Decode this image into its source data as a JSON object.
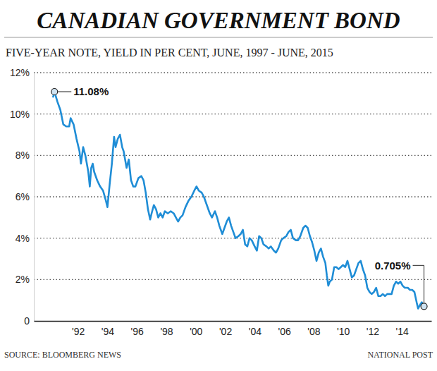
{
  "chart_data": {
    "type": "line",
    "title": "CANADIAN GOVERNMENT BOND",
    "subtitle": "FIVE-YEAR NOTE, YIELD IN PER CENT, JUNE, 1997 - JUNE, 2015",
    "source": "SOURCE: BLOOMBERG NEWS",
    "credit": "NATIONAL POST",
    "color": "#1f8dd6",
    "grid": true,
    "xlim": [
      1989,
      2016
    ],
    "xticks": [
      {
        "value": 1992,
        "label": "'92"
      },
      {
        "value": 1994,
        "label": "'94"
      },
      {
        "value": 1996,
        "label": "'96"
      },
      {
        "value": 1998,
        "label": "'98"
      },
      {
        "value": 2000,
        "label": "'00"
      },
      {
        "value": 2002,
        "label": "'02"
      },
      {
        "value": 2004,
        "label": "'04"
      },
      {
        "value": 2006,
        "label": "'06"
      },
      {
        "value": 2008,
        "label": "'08"
      },
      {
        "value": 2010,
        "label": "'10"
      },
      {
        "value": 2012,
        "label": "'12"
      },
      {
        "value": 2014,
        "label": "'14"
      }
    ],
    "ylim": [
      0,
      12
    ],
    "yticks": [
      0,
      {
        "value": 2,
        "label": "2%"
      },
      {
        "value": 4,
        "label": "4%"
      },
      {
        "value": 6,
        "label": "6%"
      },
      {
        "value": 8,
        "label": "8%"
      },
      {
        "value": 10,
        "label": "10%"
      },
      {
        "value": 12,
        "label": "12%"
      }
    ],
    "x": [
      1990.3,
      1990.4,
      1990.6,
      1990.8,
      1991.0,
      1991.2,
      1991.4,
      1991.5,
      1991.7,
      1991.9,
      1992.1,
      1992.2,
      1992.35,
      1992.5,
      1992.7,
      1992.8,
      1992.9,
      1993.0,
      1993.1,
      1993.3,
      1993.5,
      1993.7,
      1993.9,
      1994.0,
      1994.15,
      1994.3,
      1994.45,
      1994.55,
      1994.7,
      1994.85,
      1995.0,
      1995.1,
      1995.3,
      1995.45,
      1995.6,
      1995.75,
      1995.9,
      1996.1,
      1996.3,
      1996.45,
      1996.6,
      1996.75,
      1996.9,
      1997.0,
      1997.15,
      1997.3,
      1997.45,
      1997.6,
      1997.75,
      1997.9,
      1998.1,
      1998.3,
      1998.5,
      1998.65,
      1998.8,
      1998.95,
      1999.1,
      1999.3,
      1999.5,
      1999.7,
      1999.9,
      2000.05,
      2000.2,
      2000.4,
      2000.55,
      2000.75,
      2000.95,
      2001.1,
      2001.3,
      2001.45,
      2001.6,
      2001.8,
      2001.95,
      2002.1,
      2002.25,
      2002.4,
      2002.55,
      2002.7,
      2002.9,
      2003.05,
      2003.2,
      2003.35,
      2003.5,
      2003.65,
      2003.8,
      2004.0,
      2004.15,
      2004.3,
      2004.45,
      2004.6,
      2004.8,
      2004.95,
      2005.1,
      2005.3,
      2005.45,
      2005.6,
      2005.8,
      2005.95,
      2006.15,
      2006.3,
      2006.45,
      2006.6,
      2006.8,
      2006.95,
      2007.1,
      2007.3,
      2007.45,
      2007.6,
      2007.75,
      2007.9,
      2008.05,
      2008.2,
      2008.35,
      2008.5,
      2008.65,
      2008.8,
      2008.9,
      2009.0,
      2009.1,
      2009.25,
      2009.4,
      2009.55,
      2009.7,
      2009.85,
      2010.0,
      2010.15,
      2010.3,
      2010.45,
      2010.6,
      2010.75,
      2010.9,
      2011.05,
      2011.2,
      2011.35,
      2011.5,
      2011.65,
      2011.8,
      2011.95,
      2012.1,
      2012.25,
      2012.4,
      2012.55,
      2012.7,
      2012.85,
      2013.0,
      2013.15,
      2013.3,
      2013.45,
      2013.6,
      2013.75,
      2013.9,
      2014.05,
      2014.2,
      2014.4,
      2014.55,
      2014.7,
      2014.85,
      2015.0,
      2015.1,
      2015.25,
      2015.35,
      2015.5
    ],
    "values": [
      10.8,
      11.08,
      10.6,
      10.2,
      9.5,
      9.4,
      9.4,
      9.8,
      9.5,
      8.8,
      8.2,
      7.6,
      8.4,
      8.0,
      7.2,
      6.5,
      7.4,
      7.6,
      7.2,
      6.8,
      6.5,
      6.3,
      5.8,
      5.5,
      6.6,
      7.6,
      8.9,
      8.4,
      8.8,
      9.0,
      8.4,
      8.2,
      7.4,
      7.8,
      6.8,
      6.5,
      6.5,
      6.9,
      7.0,
      6.8,
      6.2,
      5.4,
      4.9,
      5.2,
      5.6,
      5.4,
      5.0,
      5.2,
      5.0,
      5.3,
      5.2,
      5.3,
      5.2,
      5.0,
      4.8,
      5.0,
      5.1,
      5.5,
      5.8,
      6.0,
      6.3,
      6.5,
      6.3,
      6.2,
      6.0,
      5.6,
      5.2,
      5.0,
      5.3,
      5.0,
      4.6,
      4.2,
      4.5,
      4.8,
      5.0,
      4.6,
      4.3,
      4.0,
      4.1,
      4.2,
      4.4,
      3.7,
      3.6,
      4.0,
      3.9,
      3.6,
      3.4,
      4.1,
      4.0,
      3.7,
      3.6,
      3.5,
      3.6,
      3.4,
      3.3,
      3.5,
      3.9,
      4.0,
      4.1,
      4.3,
      4.4,
      4.0,
      3.9,
      3.9,
      4.1,
      4.5,
      4.6,
      4.5,
      4.1,
      3.8,
      3.4,
      2.9,
      3.3,
      3.5,
      3.1,
      2.8,
      2.2,
      1.7,
      1.9,
      2.0,
      2.6,
      2.6,
      2.5,
      2.6,
      2.7,
      2.6,
      2.9,
      2.5,
      2.1,
      2.2,
      2.5,
      2.8,
      2.9,
      2.5,
      2.2,
      1.6,
      1.4,
      1.3,
      1.4,
      1.6,
      1.2,
      1.2,
      1.3,
      1.2,
      1.3,
      1.3,
      1.3,
      1.7,
      1.9,
      1.8,
      1.9,
      1.7,
      1.6,
      1.6,
      1.5,
      1.5,
      1.4,
      0.9,
      0.6,
      0.8,
      0.9,
      0.705
    ],
    "annotations": [
      {
        "text": "11.08%",
        "x": 1990.4,
        "y": 11.08
      },
      {
        "text": "0.705%",
        "x": 2015.5,
        "y": 0.705
      }
    ]
  }
}
